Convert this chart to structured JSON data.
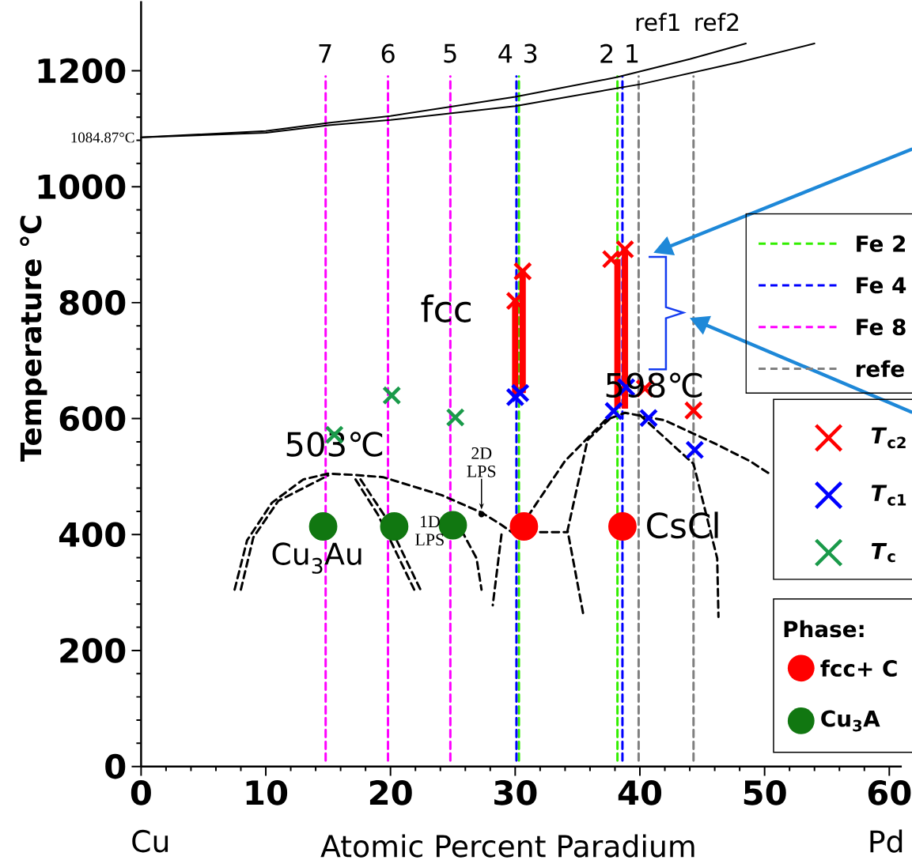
{
  "chart_data": {
    "type": "line",
    "xlabel": "Atomic Percent Paradium",
    "ylabel": "Temperature ℃",
    "xlim": [
      0,
      61
    ],
    "ylim": [
      0,
      1320
    ],
    "xticks": [
      0,
      10,
      20,
      30,
      40,
      50,
      60
    ],
    "yticks": [
      0,
      200,
      400,
      600,
      800,
      1000,
      1200
    ],
    "legend": "right",
    "legend_title": "Phase:",
    "series": [
      {
        "name": "Fe  2",
        "color": "#33ee00",
        "line_style": "dashed",
        "x": [
          30.3,
          30.3,
          null,
          38.2,
          38.2
        ],
        "values": [
          10,
          1190,
          null,
          10,
          1190
        ]
      },
      {
        "name": "Fe 4",
        "color": "#0000ff",
        "line_style": "dashed",
        "x": [
          30.1,
          30.1,
          null,
          38.6,
          38.6
        ],
        "values": [
          10,
          1190,
          null,
          10,
          1190
        ]
      },
      {
        "name": "Fe 8",
        "color": "#ff00ff",
        "line_style": "dashed",
        "x": [
          14.8,
          14.8,
          null,
          19.8,
          19.8,
          null,
          24.8,
          24.8
        ],
        "values": [
          10,
          1190,
          null,
          10,
          1190,
          null,
          10,
          1190
        ]
      },
      {
        "name": "refe",
        "color": "#808080",
        "line_style": "dashed",
        "x": [
          39.9,
          39.9,
          null,
          44.3,
          44.3
        ],
        "values": [
          10,
          1190,
          null,
          10,
          1190
        ]
      },
      {
        "color": "#000000",
        "line_style": "solid",
        "x": [
          0,
          10,
          15,
          20,
          30,
          38.2,
          44,
          48.5
        ],
        "values": [
          1085,
          1096,
          1110,
          1122,
          1155,
          1189,
          1220,
          1247
        ]
      },
      {
        "color": "#000000",
        "line_style": "solid",
        "x": [
          0,
          10,
          15,
          20,
          30,
          40.1,
          48,
          54
        ],
        "values": [
          1085,
          1093,
          1106,
          1115,
          1139,
          1177,
          1215,
          1247
        ]
      },
      {
        "color": "#000000",
        "line_style": "dashed",
        "x": [
          7.5,
          8.5,
          10.5,
          13,
          15,
          17,
          19.4,
          24.1,
          27.3,
          28.8,
          30,
          null,
          8,
          9,
          11,
          15,
          null,
          17.2,
          19,
          21.9,
          null,
          17.6,
          19.6,
          22.4,
          null,
          25.7,
          26.9,
          27.3,
          null,
          28.9,
          28.2,
          null,
          32.0,
          34.2,
          null,
          31,
          34,
          37.2,
          38.8,
          42,
          46.2,
          48.8,
          50.6,
          null,
          40,
          44.3,
          46.2,
          46.3,
          null,
          37.6,
          35.8,
          34.2,
          35.5
        ],
        "values": [
          305,
          390,
          455,
          495,
          505,
          503,
          499,
          468,
          438,
          418,
          400,
          null,
          305,
          395,
          458,
          502,
          null,
          495,
          434,
          305,
          null,
          495,
          430,
          305,
          null,
          407,
          359,
          305,
          null,
          400,
          278,
          null,
          404,
          404,
          null,
          431,
          527,
          597,
          610,
          597,
          555,
          527,
          502,
          null,
          606,
          522,
          359,
          258,
          null,
          600,
          563,
          407,
          258
        ]
      },
      {
        "type": "bar",
        "color": "#ff0000",
        "x": [
          30.0,
          30.6,
          38.2,
          38.8
        ],
        "base": [
          637,
          644,
          617,
          617
        ],
        "values": [
          166,
          210,
          258,
          275
        ]
      },
      {
        "name": "*T*$_{c2}$",
        "type": "scatter",
        "marker": "cross",
        "color": "#ff0000",
        "x": [
          30.6,
          30.0,
          37.7,
          38.8,
          40.4,
          44.3
        ],
        "values": [
          854,
          803,
          875,
          892,
          652,
          614
        ]
      },
      {
        "name": "*T*$_{c1}$",
        "type": "scatter",
        "marker": "cross",
        "color": "#0000ff",
        "x": [
          30.0,
          30.4,
          37.9,
          38.9,
          40.7,
          44.4
        ],
        "values": [
          637,
          644,
          613,
          654,
          601,
          546
        ]
      },
      {
        "name": "*T*$_{c}$",
        "type": "scatter",
        "marker": "cross",
        "color": "#1a9a4a",
        "x": [
          15.5,
          20.1,
          25.2
        ],
        "values": [
          572,
          640,
          602
        ]
      },
      {
        "name": "fcc+ C",
        "type": "scatter",
        "marker": "circle",
        "color": "#ff0000",
        "x": [
          30.7,
          38.6
        ],
        "values": [
          414,
          414
        ]
      },
      {
        "name": "Cu$_{3}$A",
        "type": "scatter",
        "marker": "circle",
        "color": "#117711",
        "x": [
          14.6,
          20.3,
          25.0
        ],
        "values": [
          414,
          414,
          416
        ]
      }
    ],
    "annotations": [
      {
        "text": "fcc",
        "x": 24.5,
        "y": 790
      },
      {
        "text": "503℃",
        "x": 15.5,
        "y": 572
      },
      {
        "text": "2D LPS",
        "x": 27.3,
        "y": 435
      },
      "7",
      "6",
      "5",
      "4",
      "3",
      "2",
      "1",
      "ref1",
      "ref2",
      "598℃",
      "CsCl",
      "Cu$_{3}$Au",
      "1D LPS",
      "Cu",
      "Pd",
      "1084.87°C"
    ]
  }
}
